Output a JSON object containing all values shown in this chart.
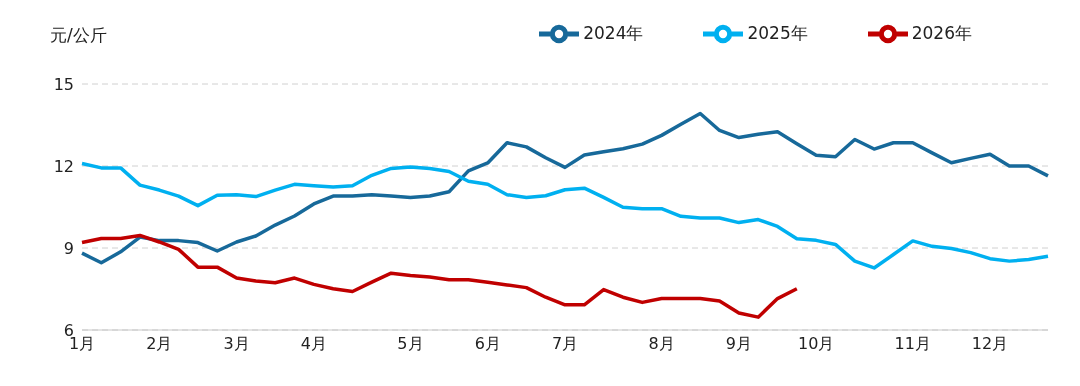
{
  "chart_data": {
    "type": "line",
    "ylabel": "元/公斤",
    "categories": [
      "1月",
      null,
      null,
      null,
      "2月",
      null,
      null,
      null,
      "3月",
      null,
      null,
      null,
      "4月",
      null,
      null,
      null,
      null,
      "5月",
      null,
      null,
      null,
      "6月",
      null,
      null,
      null,
      "7月",
      null,
      null,
      null,
      null,
      "8月",
      null,
      null,
      null,
      "9月",
      null,
      null,
      null,
      "10月",
      null,
      null,
      null,
      null,
      "11月",
      null,
      null,
      null,
      "12月",
      null,
      null,
      null
    ],
    "series": [
      {
        "name": "2024年",
        "color": "#17699a",
        "values": [
          8.81,
          8.46,
          8.86,
          9.4,
          9.27,
          9.27,
          9.2,
          8.89,
          9.22,
          9.44,
          9.84,
          10.17,
          10.61,
          10.9,
          10.9,
          10.95,
          10.9,
          10.85,
          10.9,
          11.06,
          11.82,
          12.11,
          12.85,
          12.7,
          12.3,
          11.95,
          12.4,
          12.52,
          12.63,
          12.8,
          13.12,
          13.53,
          13.92,
          13.3,
          13.04,
          13.16,
          13.25,
          12.81,
          12.39,
          12.34,
          12.97,
          12.62,
          12.85,
          12.85,
          12.48,
          12.12,
          12.28,
          12.43,
          12.0,
          12.0,
          11.64
        ]
      },
      {
        "name": "2025年",
        "color": "#00b0f0",
        "values": [
          12.09,
          11.93,
          11.93,
          11.3,
          11.12,
          10.9,
          10.55,
          10.93,
          10.95,
          10.88,
          11.12,
          11.33,
          11.28,
          11.23,
          11.28,
          11.66,
          11.91,
          11.96,
          11.91,
          11.8,
          11.44,
          11.33,
          10.95,
          10.85,
          10.91,
          11.13,
          11.19,
          10.85,
          10.49,
          10.44,
          10.44,
          10.16,
          10.1,
          10.1,
          9.93,
          10.04,
          9.79,
          9.34,
          9.28,
          9.13,
          8.52,
          8.27,
          8.76,
          9.26,
          9.06,
          8.98,
          8.83,
          8.61,
          8.52,
          8.58,
          8.7
        ]
      },
      {
        "name": "2026年",
        "color": "#c00000",
        "values": [
          9.2,
          9.35,
          9.35,
          9.46,
          9.22,
          8.95,
          8.3,
          8.3,
          7.9,
          7.79,
          7.73,
          7.9,
          7.67,
          7.51,
          7.41,
          7.75,
          8.08,
          7.99,
          7.94,
          7.84,
          7.84,
          7.75,
          7.65,
          7.55,
          7.2,
          6.92,
          6.92,
          7.48,
          7.2,
          7.01,
          7.15,
          7.15,
          7.15,
          7.06,
          6.62,
          6.47,
          7.15,
          7.51,
          null,
          null,
          null,
          null,
          null,
          null,
          null,
          null,
          null,
          null,
          null,
          null,
          null
        ]
      }
    ],
    "ylim": [
      6,
      15
    ],
    "yticks": [
      6,
      9,
      12,
      15
    ],
    "grid": "y",
    "legend": "top",
    "marker": "none",
    "line_style": "solid"
  }
}
